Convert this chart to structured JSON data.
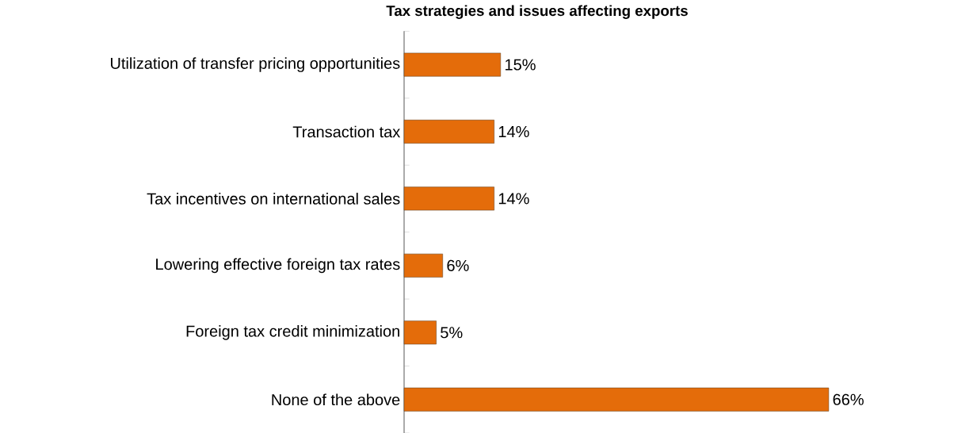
{
  "chart_data": {
    "type": "bar",
    "orientation": "horizontal",
    "title": "Tax strategies and issues affecting exports",
    "categories": [
      "Utilization of transfer pricing opportunities",
      "Transaction tax",
      "Tax incentives on international sales",
      "Lowering effective foreign tax rates",
      "Foreign tax credit minimization",
      "None of the above"
    ],
    "values": [
      15,
      14,
      14,
      6,
      5,
      66
    ],
    "value_labels": [
      "15%",
      "14%",
      "14%",
      "6%",
      "5%",
      "66%"
    ],
    "color": "#e46c0a"
  }
}
